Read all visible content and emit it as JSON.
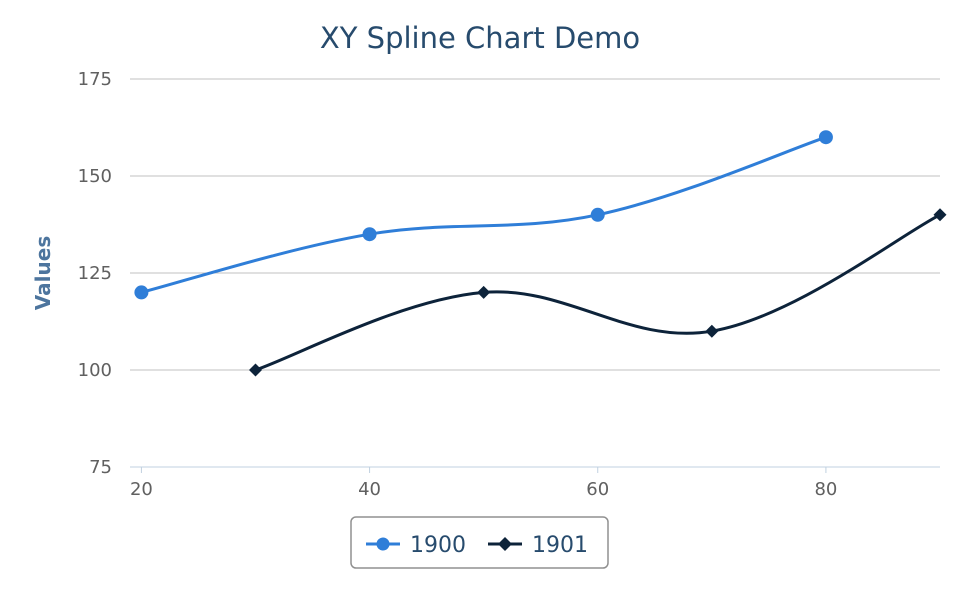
{
  "chart_data": {
    "type": "line",
    "subtype": "spline",
    "title": "XY Spline Chart Demo",
    "xlabel": "",
    "ylabel": "Values",
    "xlim": [
      19,
      90
    ],
    "ylim": [
      75,
      175
    ],
    "x_ticks": [
      "20",
      "40",
      "60",
      "80"
    ],
    "y_ticks": [
      "75",
      "100",
      "125",
      "150",
      "175"
    ],
    "grid": true,
    "legend_position": "bottom-center",
    "series": [
      {
        "name": "1900",
        "color": "#2f7ed8",
        "marker": "circle",
        "points": [
          [
            20,
            120
          ],
          [
            40,
            135
          ],
          [
            60,
            140
          ],
          [
            80,
            160
          ]
        ]
      },
      {
        "name": "1901",
        "color": "#0d233a",
        "marker": "diamond",
        "points": [
          [
            30,
            100
          ],
          [
            50,
            120
          ],
          [
            70,
            110
          ],
          [
            90,
            140
          ]
        ]
      }
    ]
  }
}
